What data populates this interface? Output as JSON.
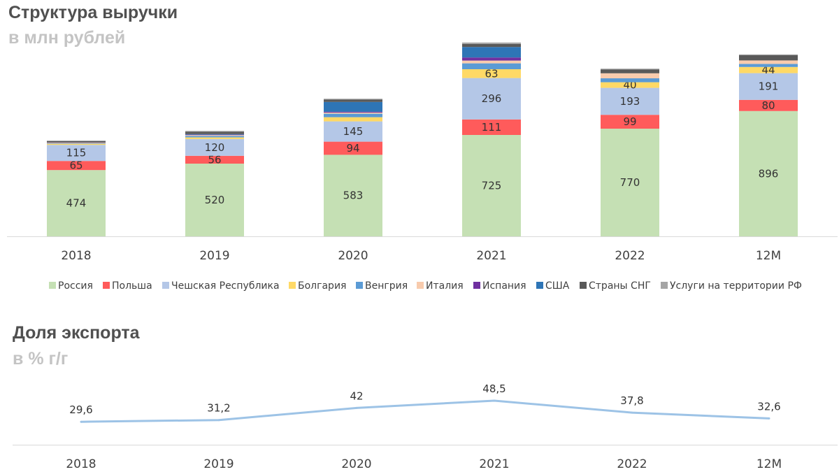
{
  "header": {
    "title": "Структура выручки",
    "subtitle": "в млн рублей"
  },
  "export_header": {
    "title": "Доля экспорта",
    "subtitle": "в % г/г"
  },
  "chart_data": [
    {
      "type": "bar",
      "stacked": true,
      "title": "Структура выручки",
      "subtitle": "в млн рублей",
      "categories": [
        "2018",
        "2019",
        "2020",
        "2021",
        "2022",
        "12M"
      ],
      "series": [
        {
          "name": "Россия",
          "color": "#c5e0b4",
          "values": [
            474,
            520,
            583,
            725,
            770,
            896
          ],
          "labels": [
            "474",
            "520",
            "583",
            "725",
            "770",
            "896"
          ]
        },
        {
          "name": "Польша",
          "color": "#ff5b5b",
          "values": [
            65,
            56,
            94,
            111,
            99,
            80
          ],
          "labels": [
            "65",
            "56",
            "94",
            "111",
            "99",
            "80"
          ]
        },
        {
          "name": "Чешская Республика",
          "color": "#b4c7e7",
          "values": [
            115,
            120,
            145,
            296,
            193,
            191
          ],
          "labels": [
            "115",
            "120",
            "145",
            "296",
            "193",
            "191"
          ]
        },
        {
          "name": "Болгария",
          "color": "#ffd966",
          "values": [
            8,
            12,
            30,
            63,
            40,
            44
          ],
          "labels": [
            "",
            "",
            "",
            "63",
            "40",
            "44"
          ]
        },
        {
          "name": "Венгрия",
          "color": "#5b9bd5",
          "values": [
            4,
            10,
            25,
            42,
            28,
            22
          ],
          "labels": [
            "",
            "",
            "",
            "",
            "",
            ""
          ]
        },
        {
          "name": "Италия",
          "color": "#f8cbad",
          "values": [
            3,
            6,
            8,
            20,
            36,
            25
          ],
          "labels": [
            "",
            "",
            "",
            "",
            "",
            ""
          ]
        },
        {
          "name": "Испания",
          "color": "#7030a0",
          "values": [
            2,
            3,
            6,
            22,
            0,
            0
          ],
          "labels": [
            "",
            "",
            "",
            "",
            "",
            ""
          ]
        },
        {
          "name": "США",
          "color": "#2e75b6",
          "values": [
            0,
            4,
            70,
            75,
            0,
            0
          ],
          "labels": [
            "",
            "",
            "",
            "",
            "",
            ""
          ]
        },
        {
          "name": "Страны СНГ",
          "color": "#595959",
          "values": [
            10,
            17,
            18,
            22,
            28,
            38
          ],
          "labels": [
            "",
            "",
            "",
            "",
            "",
            ""
          ]
        },
        {
          "name": "Услуги на территории РФ",
          "color": "#a5a5a5",
          "values": [
            4,
            6,
            5,
            10,
            5,
            5
          ],
          "labels": [
            "",
            "",
            "",
            "",
            "",
            ""
          ]
        }
      ],
      "legend": "bottom"
    },
    {
      "type": "line",
      "title": "Доля экспорта",
      "subtitle": "в % г/г",
      "categories": [
        "2018",
        "2019",
        "2020",
        "2021",
        "2022",
        "12M"
      ],
      "series": [
        {
          "name": "Доля экспорта",
          "color": "#9dc3e6",
          "values": [
            29.6,
            31.2,
            42,
            48.5,
            37.8,
            32.6
          ],
          "labels": [
            "29,6",
            "31,2",
            "42",
            "48,5",
            "37,8",
            "32,6"
          ]
        }
      ],
      "legend": "none"
    }
  ]
}
